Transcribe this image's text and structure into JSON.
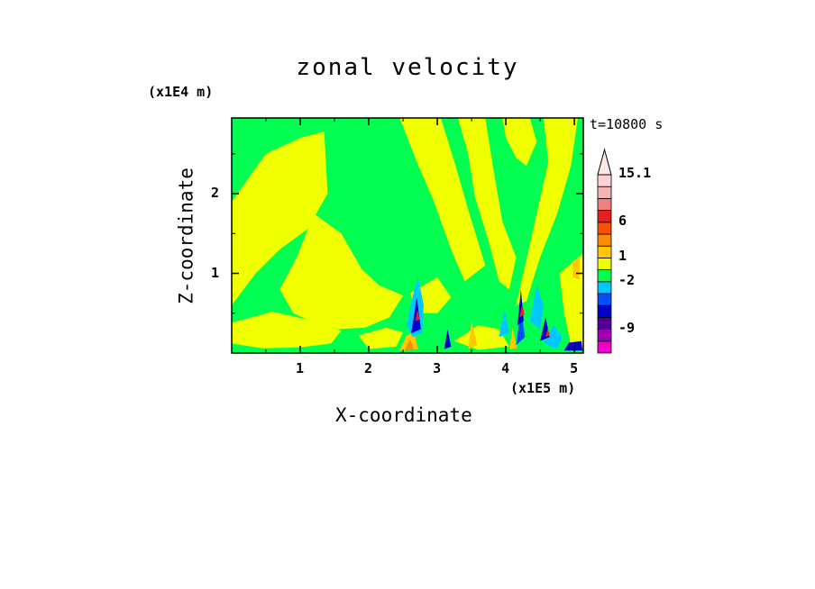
{
  "chart_data": {
    "type": "heatmap",
    "title": "zonal velocity",
    "xlabel": "X-coordinate",
    "ylabel": "Z-coordinate",
    "x_unit_label": "(x1E5 m)",
    "y_unit_label": "(x1E4 m)",
    "time_label": "t=10800 s",
    "xlim": [
      0,
      5.13
    ],
    "ylim": [
      0,
      2.95
    ],
    "x_ticks": [
      "1",
      "2",
      "3",
      "4",
      "5"
    ],
    "y_ticks": [
      "1",
      "2"
    ],
    "colorbar": {
      "labels": [
        {
          "text": "15.1",
          "value": 15.1
        },
        {
          "text": "6",
          "value": 6
        },
        {
          "text": "1",
          "value": 1
        },
        {
          "text": "-2",
          "value": -2
        },
        {
          "text": "-9",
          "value": -9
        }
      ],
      "colors": [
        "#f000c8",
        "#a000b4",
        "#500098",
        "#0000c8",
        "#0050ff",
        "#00c8ff",
        "#00ff50",
        "#f0ff00",
        "#ffc800",
        "#ff8c00",
        "#ff5000",
        "#e61e1e",
        "#f08080",
        "#f5b4b4",
        "#ffd2d2"
      ]
    },
    "regions": [
      {
        "fill": "#f0ff00",
        "polygon": [
          [
            0,
            0.6
          ],
          [
            0,
            1.9
          ],
          [
            0.5,
            2.5
          ],
          [
            1.0,
            2.7
          ],
          [
            1.35,
            2.78
          ],
          [
            1.4,
            2.0
          ],
          [
            1.1,
            1.55
          ],
          [
            0.7,
            1.3
          ],
          [
            0.35,
            1.0
          ]
        ]
      },
      {
        "fill": "#f0ff00",
        "polygon": [
          [
            1.2,
            1.75
          ],
          [
            1.6,
            1.5
          ],
          [
            1.9,
            1.05
          ],
          [
            2.15,
            0.85
          ],
          [
            2.5,
            0.72
          ],
          [
            2.3,
            0.45
          ],
          [
            1.95,
            0.32
          ],
          [
            1.55,
            0.3
          ],
          [
            1.2,
            0.38
          ],
          [
            0.9,
            0.5
          ],
          [
            0.7,
            0.8
          ],
          [
            0.95,
            1.2
          ]
        ]
      },
      {
        "fill": "#f0ff00",
        "polygon": [
          [
            0,
            0.12
          ],
          [
            0,
            0.38
          ],
          [
            0.6,
            0.52
          ],
          [
            1.2,
            0.4
          ],
          [
            1.6,
            0.28
          ],
          [
            1.45,
            0.12
          ],
          [
            1.0,
            0.07
          ],
          [
            0.45,
            0.06
          ]
        ]
      },
      {
        "fill": "#f0ff00",
        "polygon": [
          [
            1.85,
            0.22
          ],
          [
            2.25,
            0.32
          ],
          [
            2.5,
            0.26
          ],
          [
            2.4,
            0.08
          ],
          [
            2.0,
            0.05
          ]
        ]
      },
      {
        "fill": "#f0ff00",
        "polygon": [
          [
            2.45,
            2.95
          ],
          [
            3.05,
            2.95
          ],
          [
            3.25,
            2.4
          ],
          [
            3.45,
            1.8
          ],
          [
            3.7,
            1.1
          ],
          [
            3.4,
            0.9
          ],
          [
            3.2,
            1.3
          ],
          [
            2.95,
            1.9
          ],
          [
            2.7,
            2.4
          ]
        ]
      },
      {
        "fill": "#f0ff00",
        "polygon": [
          [
            3.3,
            2.95
          ],
          [
            3.7,
            2.95
          ],
          [
            3.82,
            2.3
          ],
          [
            3.95,
            1.65
          ],
          [
            4.15,
            1.2
          ],
          [
            4.05,
            0.8
          ],
          [
            3.9,
            0.9
          ],
          [
            3.75,
            1.4
          ],
          [
            3.55,
            1.95
          ],
          [
            3.45,
            2.5
          ]
        ]
      },
      {
        "fill": "#f0ff00",
        "polygon": [
          [
            3.95,
            2.95
          ],
          [
            4.35,
            2.95
          ],
          [
            4.45,
            2.65
          ],
          [
            4.3,
            2.35
          ],
          [
            4.15,
            2.45
          ],
          [
            4.0,
            2.7
          ]
        ]
      },
      {
        "fill": "#f0ff00",
        "polygon": [
          [
            4.55,
            2.95
          ],
          [
            5.05,
            2.95
          ],
          [
            4.95,
            2.35
          ],
          [
            4.75,
            1.75
          ],
          [
            4.5,
            1.2
          ],
          [
            4.3,
            0.65
          ],
          [
            4.15,
            0.6
          ],
          [
            4.28,
            1.1
          ],
          [
            4.45,
            1.75
          ],
          [
            4.62,
            2.4
          ]
        ]
      },
      {
        "fill": "#f0ff00",
        "polygon": [
          [
            4.78,
            1.0
          ],
          [
            5.13,
            1.25
          ],
          [
            5.13,
            0.05
          ],
          [
            4.95,
            0.1
          ],
          [
            4.85,
            0.5
          ]
        ]
      },
      {
        "fill": "#f0ff00",
        "polygon": [
          [
            3.25,
            0.15
          ],
          [
            3.6,
            0.35
          ],
          [
            3.9,
            0.3
          ],
          [
            4.05,
            0.08
          ],
          [
            3.6,
            0.04
          ]
        ]
      },
      {
        "fill": "#f0ff00",
        "polygon": [
          [
            2.6,
            0.75
          ],
          [
            3.0,
            0.95
          ],
          [
            3.2,
            0.7
          ],
          [
            3.0,
            0.5
          ],
          [
            2.7,
            0.5
          ]
        ]
      },
      {
        "fill": "#ffc800",
        "polygon": [
          [
            4.97,
            1.15
          ],
          [
            5.08,
            1.2
          ],
          [
            5.07,
            0.92
          ],
          [
            4.98,
            0.95
          ]
        ]
      },
      {
        "fill": "#ffc800",
        "polygon": [
          [
            2.45,
            0.03
          ],
          [
            2.55,
            0.22
          ],
          [
            2.66,
            0.26
          ],
          [
            2.72,
            0.05
          ]
        ]
      },
      {
        "fill": "#ff8c00",
        "polygon": [
          [
            2.53,
            0.04
          ],
          [
            2.6,
            0.18
          ],
          [
            2.66,
            0.04
          ]
        ]
      },
      {
        "fill": "#ffc800",
        "polygon": [
          [
            3.45,
            0.05
          ],
          [
            3.5,
            0.4
          ],
          [
            3.58,
            0.1
          ]
        ]
      },
      {
        "fill": "#ffc800",
        "polygon": [
          [
            4.05,
            0.05
          ],
          [
            4.1,
            0.32
          ],
          [
            4.16,
            0.06
          ]
        ]
      },
      {
        "fill": "#00c8ff",
        "polygon": [
          [
            2.55,
            0.35
          ],
          [
            2.65,
            0.75
          ],
          [
            2.72,
            0.95
          ],
          [
            2.8,
            0.6
          ],
          [
            2.78,
            0.25
          ],
          [
            2.64,
            0.2
          ]
        ]
      },
      {
        "fill": "#00c8ff",
        "polygon": [
          [
            4.35,
            0.4
          ],
          [
            4.45,
            0.85
          ],
          [
            4.55,
            0.6
          ],
          [
            4.5,
            0.3
          ]
        ]
      },
      {
        "fill": "#00c8ff",
        "polygon": [
          [
            4.55,
            0.12
          ],
          [
            4.7,
            0.35
          ],
          [
            4.82,
            0.2
          ],
          [
            4.75,
            0.05
          ]
        ]
      },
      {
        "fill": "#00c8ff",
        "polygon": [
          [
            3.9,
            0.2
          ],
          [
            3.98,
            0.55
          ],
          [
            4.05,
            0.25
          ]
        ]
      },
      {
        "fill": "#0050ff",
        "polygon": [
          [
            4.15,
            0.1
          ],
          [
            4.22,
            0.55
          ],
          [
            4.28,
            0.2
          ]
        ]
      },
      {
        "fill": "#0000c8",
        "polygon": [
          [
            2.62,
            0.25
          ],
          [
            2.7,
            0.7
          ],
          [
            2.76,
            0.3
          ]
        ]
      },
      {
        "fill": "#0000c8",
        "polygon": [
          [
            4.17,
            0.35
          ],
          [
            4.22,
            0.8
          ],
          [
            4.26,
            0.4
          ]
        ]
      },
      {
        "fill": "#0000c8",
        "polygon": [
          [
            4.5,
            0.15
          ],
          [
            4.58,
            0.45
          ],
          [
            4.64,
            0.2
          ]
        ]
      },
      {
        "fill": "#0000c8",
        "polygon": [
          [
            4.85,
            0.03
          ],
          [
            4.92,
            0.13
          ],
          [
            5.1,
            0.15
          ],
          [
            5.12,
            0.03
          ]
        ]
      },
      {
        "fill": "#0000c8",
        "polygon": [
          [
            3.1,
            0.05
          ],
          [
            3.15,
            0.3
          ],
          [
            3.2,
            0.08
          ]
        ]
      },
      {
        "fill": "#e61e1e",
        "polygon": [
          [
            4.2,
            0.45
          ],
          [
            4.24,
            0.62
          ],
          [
            4.27,
            0.48
          ]
        ]
      },
      {
        "fill": "#e61e1e",
        "polygon": [
          [
            2.68,
            0.4
          ],
          [
            2.71,
            0.55
          ],
          [
            2.74,
            0.42
          ]
        ]
      },
      {
        "fill": "#e61e1e",
        "polygon": [
          [
            4.58,
            0.2
          ],
          [
            4.61,
            0.32
          ],
          [
            4.64,
            0.22
          ]
        ]
      }
    ]
  }
}
